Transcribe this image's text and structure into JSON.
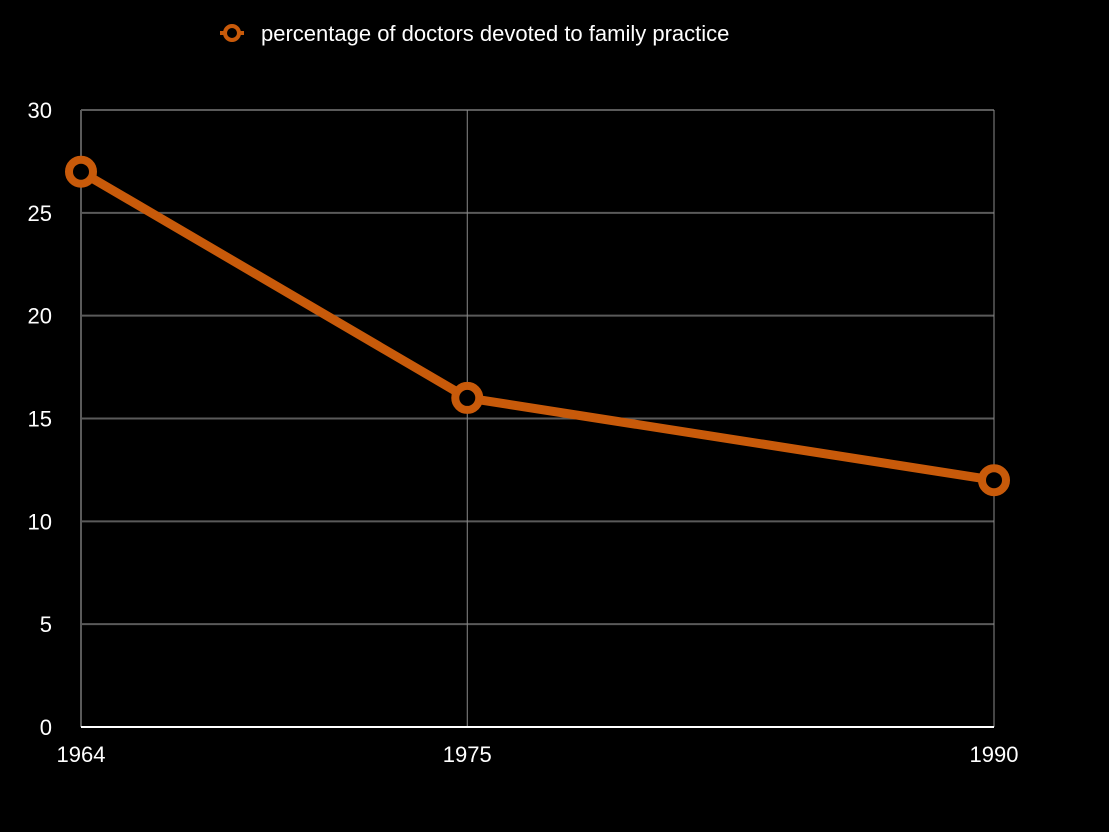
{
  "chart_data": {
    "type": "line",
    "title": "",
    "xlabel": "",
    "ylabel": "",
    "categories": [
      "1964",
      "1975",
      "1990"
    ],
    "x": [
      1964,
      1975,
      1990
    ],
    "series": [
      {
        "name": "percentage of doctors devoted to family practice",
        "values": [
          27,
          16,
          12
        ],
        "color": "#c85a0a",
        "marker": "open-circle"
      }
    ],
    "ylim": [
      0,
      30
    ],
    "yticks": [
      "0",
      "5",
      "10",
      "15",
      "20",
      "25",
      "30"
    ],
    "xaxis_scale": "linear",
    "grid": {
      "horizontal": true,
      "vertical": true
    },
    "legend_position": "top",
    "background_color": "#000000",
    "grid_color": "#5a5a5a",
    "axis_color": "#ffffff",
    "text_color": "#ffffff"
  }
}
